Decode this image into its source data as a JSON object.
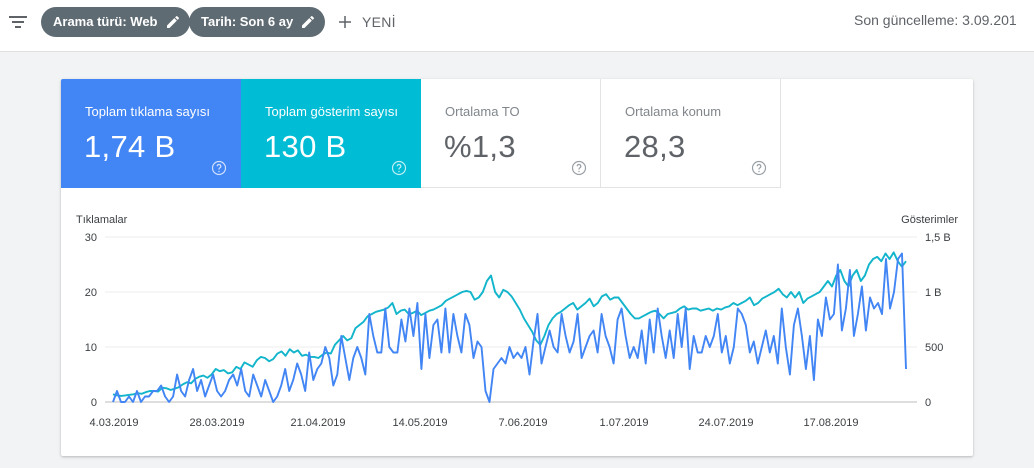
{
  "toolbar": {
    "filter_icon": "filter-list-icon",
    "chip_search_type": "Arama türü: Web",
    "chip_date": "Tarih: Son 6 ay",
    "new_label": "YENİ",
    "last_update": "Son güncelleme: 3.09.201"
  },
  "metrics": [
    {
      "label": "Toplam tıklama sayısı",
      "value": "1,74 B",
      "color": "#4285f4"
    },
    {
      "label": "Toplam gösterim sayısı",
      "value": "130 B",
      "color": "#00bcd4"
    },
    {
      "label": "Ortalama TO",
      "value": "%1,3"
    },
    {
      "label": "Ortalama konum",
      "value": "28,3"
    }
  ],
  "chart_data": {
    "type": "line",
    "left_axis": {
      "label": "Tıklamalar",
      "ticks": [
        "0",
        "10",
        "20",
        "30"
      ],
      "range": [
        0,
        30
      ]
    },
    "right_axis": {
      "label": "Gösterimler",
      "ticks": [
        "0",
        "500",
        "1 B",
        "1,5 B"
      ],
      "range": [
        0,
        1500
      ]
    },
    "x_ticks": [
      "4.03.2019",
      "28.03.2019",
      "21.04.2019",
      "14.05.2019",
      "7.06.2019",
      "1.07.2019",
      "24.07.2019",
      "17.08.2019"
    ],
    "grid": true,
    "series": [
      {
        "axis": "left",
        "color": "#4285f4",
        "values": [
          0,
          2,
          0,
          0,
          1,
          0,
          2,
          0,
          1,
          1,
          2,
          2,
          3,
          1,
          0,
          1,
          5,
          2,
          1,
          4,
          6,
          2,
          4,
          1,
          3,
          5,
          2,
          1,
          2,
          4,
          5,
          3,
          6,
          2,
          1,
          5,
          3,
          1,
          4,
          2,
          0,
          1,
          3,
          6,
          2,
          4,
          7,
          5,
          2,
          9,
          4,
          6,
          7,
          10,
          8,
          3,
          5,
          12,
          8,
          4,
          8,
          10,
          8,
          5,
          16,
          12,
          9,
          9,
          17,
          10,
          9,
          9,
          15,
          11,
          17,
          12,
          18,
          6,
          16,
          8,
          14,
          15,
          9,
          17,
          9,
          16,
          12,
          9,
          16,
          14,
          8,
          11,
          10,
          2,
          0,
          6,
          7,
          8,
          7,
          10,
          8,
          9,
          8,
          10,
          5,
          11,
          16,
          7,
          10,
          13,
          10,
          9,
          16,
          12,
          9,
          11,
          16,
          8,
          10,
          12,
          13,
          9,
          16,
          12,
          10,
          7,
          15,
          17,
          12,
          8,
          10,
          8,
          13,
          7,
          15,
          9,
          17,
          12,
          8,
          13,
          8,
          16,
          10,
          17,
          6,
          12,
          9,
          9,
          12,
          10,
          12,
          16,
          9,
          12,
          7,
          10,
          17,
          16,
          14,
          9,
          11,
          7,
          10,
          13,
          9,
          12,
          7,
          17,
          10,
          5,
          14,
          17,
          12,
          6,
          12,
          4,
          15,
          12,
          19,
          15,
          16,
          25,
          13,
          17,
          24,
          12,
          16,
          21,
          13,
          19,
          17,
          18,
          16,
          26,
          17,
          20,
          26,
          27,
          6
        ],
        "scale_factor": 2
      },
      {
        "axis": "right",
        "color": "#12b5cb",
        "values": [
          70,
          60,
          55,
          60,
          65,
          70,
          80,
          75,
          90,
          100,
          100,
          95,
          130,
          125,
          110,
          120,
          135,
          160,
          180,
          170,
          210,
          230,
          240,
          220,
          250,
          300,
          280,
          290,
          260,
          270,
          320,
          300,
          360,
          340,
          320,
          380,
          410,
          400,
          370,
          390,
          440,
          460,
          420,
          480,
          450,
          470,
          420,
          430,
          410,
          410,
          400,
          430,
          450,
          440,
          520,
          560,
          600,
          560,
          580,
          670,
          700,
          730,
          780,
          800,
          820,
          830,
          840,
          860,
          900,
          800,
          830,
          840,
          800,
          810,
          830,
          790,
          810,
          830,
          840,
          860,
          880,
          920,
          940,
          960,
          980,
          1000,
          1010,
          1000,
          930,
          950,
          1000,
          1100,
          1150,
          1000,
          950,
          1020,
          1000,
          960,
          900,
          840,
          760,
          700,
          640,
          560,
          520,
          600,
          700,
          760,
          800,
          820,
          850,
          880,
          900,
          840,
          870,
          900,
          940,
          870,
          900,
          960,
          980,
          930,
          950,
          950,
          900,
          850,
          800,
          760,
          760,
          780,
          800,
          820,
          830,
          800,
          760,
          800,
          810,
          820,
          850,
          870,
          840,
          850,
          850,
          830,
          840,
          850,
          830,
          850,
          840,
          860,
          870,
          900,
          880,
          900,
          920,
          950,
          880,
          900,
          940,
          960,
          980,
          1000,
          1030,
          980,
          950,
          1000,
          950,
          1000,
          900,
          940,
          960,
          980,
          1000,
          1050,
          1100,
          1050,
          1150,
          1200,
          1100,
          1050,
          1150,
          1200,
          1100,
          1150,
          1250,
          1300,
          1320,
          1280,
          1350,
          1300,
          1360,
          1280,
          1230,
          1280
        ],
        "scale_factor": 2.75
      }
    ]
  }
}
